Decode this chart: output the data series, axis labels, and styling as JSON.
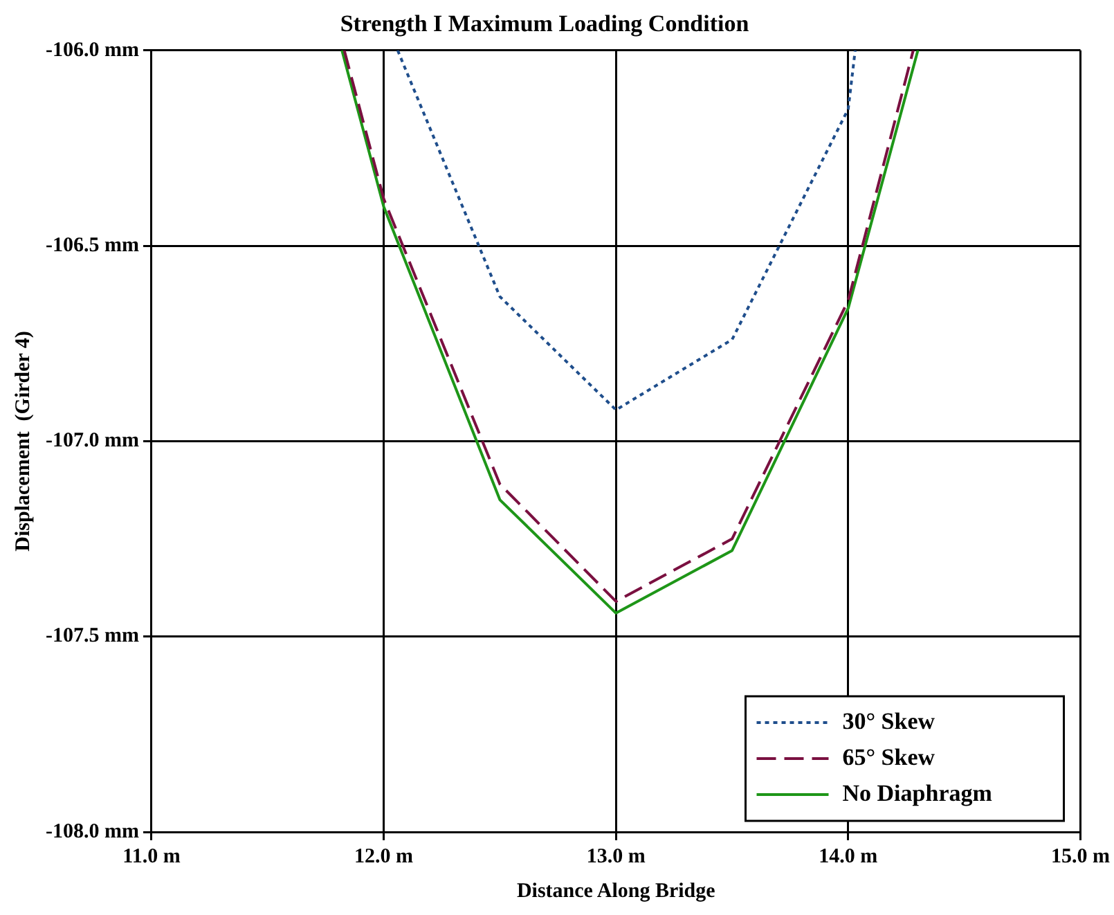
{
  "chart_data": {
    "type": "line",
    "title": "Strength I Maximum Loading Condition",
    "xlabel": "Distance Along Bridge",
    "ylabel": "Displacement  (Girder 4)",
    "xlim": [
      11,
      15
    ],
    "xticks": [
      {
        "value": 11,
        "label": "11.0 m"
      },
      {
        "value": 12,
        "label": "12.0 m"
      },
      {
        "value": 13,
        "label": "13.0 m"
      },
      {
        "value": 14,
        "label": "14.0 m"
      },
      {
        "value": 15,
        "label": "15.0 m"
      }
    ],
    "ylim": [
      -108,
      -106
    ],
    "yticks": [
      {
        "value": -108,
        "label": "-108.0 mm"
      },
      {
        "value": -107.5,
        "label": "-107.5 mm"
      },
      {
        "value": -107,
        "label": "-107.0 mm"
      },
      {
        "value": -106.5,
        "label": "-106.5 mm"
      },
      {
        "value": -106,
        "label": "-106.0 mm"
      }
    ],
    "grid": true,
    "legend": "bottom right",
    "marker": "none",
    "series": [
      {
        "name": "30° Skew",
        "color": "#1f4e8c",
        "line_style": "dotted",
        "x": [
          12.06,
          12.5,
          13,
          13.5,
          14,
          14.03
        ],
        "values": [
          -106,
          -106.63,
          -106.92,
          -106.74,
          -106.15,
          -106
        ]
      },
      {
        "name": "65° Skew",
        "color": "#7a1040",
        "line_style": "dashed",
        "x": [
          11.83,
          12,
          12.5,
          13,
          13.5,
          14,
          14.28
        ],
        "values": [
          -106,
          -106.38,
          -107.11,
          -107.41,
          -107.25,
          -106.64,
          -106
        ]
      },
      {
        "name": "No Diaphragm",
        "color": "#1e9618",
        "line_style": "solid",
        "x": [
          11.82,
          12,
          12.5,
          13,
          13.5,
          14,
          14.3
        ],
        "values": [
          -106,
          -106.4,
          -107.15,
          -107.44,
          -107.28,
          -106.66,
          -106
        ]
      }
    ]
  }
}
